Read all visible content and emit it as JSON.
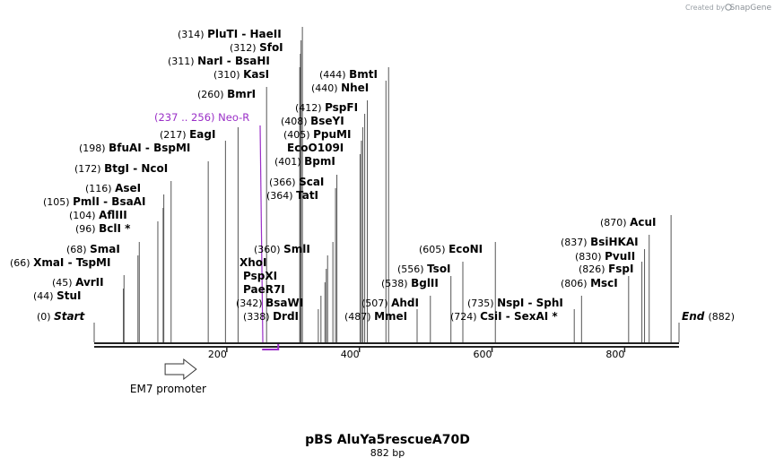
{
  "credit": {
    "prefix": "Created by",
    "brand": "SnapGene"
  },
  "title": "pBS AluYa5rescueA70D",
  "subtitle": "882 bp",
  "total_bp": 882,
  "colors": {
    "feature": "#9a2fc7",
    "line": "#555555",
    "backbone": "#222222"
  },
  "ticks": [
    {
      "bp": 200,
      "label": "200"
    },
    {
      "bp": 400,
      "label": "400"
    },
    {
      "bp": 600,
      "label": "600"
    },
    {
      "bp": 800,
      "label": "800"
    }
  ],
  "ends": {
    "start": {
      "pos": "(0)",
      "name": "Start"
    },
    "end": {
      "pos": "(882)",
      "name": "End"
    }
  },
  "feature": {
    "pos": "(237 .. 256)",
    "name": "Neo-R",
    "start": 237,
    "end": 256
  },
  "promoter": {
    "name": "EM7 promoter",
    "start": 107,
    "end": 154
  },
  "sites": [
    {
      "pos": "(44)",
      "name": "StuI",
      "bp": 44
    },
    {
      "pos": "(45)",
      "name": "AvrII",
      "bp": 45
    },
    {
      "pos": "(66)",
      "name": "XmaI - TspMI",
      "bp": 66
    },
    {
      "pos": "(68)",
      "name": "SmaI",
      "bp": 68
    },
    {
      "pos": "(96)",
      "name": "BclI *",
      "bp": 96
    },
    {
      "pos": "(104)",
      "name": "AflIII",
      "bp": 104
    },
    {
      "pos": "(105)",
      "name": "PmlI - BsaAI",
      "bp": 105
    },
    {
      "pos": "(116)",
      "name": "AseI",
      "bp": 116
    },
    {
      "pos": "(172)",
      "name": "BtgI - NcoI",
      "bp": 172
    },
    {
      "pos": "(198)",
      "name": "BfuAI - BspMI",
      "bp": 198
    },
    {
      "pos": "(217)",
      "name": "EagI",
      "bp": 217
    },
    {
      "pos": "(260)",
      "name": "BmrI",
      "bp": 260
    },
    {
      "pos": "(310)",
      "name": "KasI",
      "bp": 310
    },
    {
      "pos": "(311)",
      "name": "NarI - BsaHI",
      "bp": 311
    },
    {
      "pos": "(312)",
      "name": "SfoI",
      "bp": 312
    },
    {
      "pos": "(314)",
      "name": "PluTI - HaeII",
      "bp": 314
    },
    {
      "pos": "(338)",
      "name": "DrdI",
      "bp": 338
    },
    {
      "pos": "(342)",
      "name": "BsaWI",
      "bp": 342
    },
    {
      "pos": "",
      "name": "PaeR7I",
      "bp": 348
    },
    {
      "pos": "",
      "name": "PspXI",
      "bp": 350
    },
    {
      "pos": "",
      "name": "XhoI",
      "bp": 352
    },
    {
      "pos": "(360)",
      "name": "SmlI",
      "bp": 360
    },
    {
      "pos": "(364)",
      "name": "TatI",
      "bp": 364
    },
    {
      "pos": "(366)",
      "name": "ScaI",
      "bp": 366
    },
    {
      "pos": "(401)",
      "name": "BpmI",
      "bp": 401
    },
    {
      "pos": "",
      "name": "EcoO109I",
      "bp": 403
    },
    {
      "pos": "(405)",
      "name": "PpuMI",
      "bp": 405
    },
    {
      "pos": "(408)",
      "name": "BseYI",
      "bp": 408
    },
    {
      "pos": "(412)",
      "name": "PspFI",
      "bp": 412
    },
    {
      "pos": "(440)",
      "name": "NheI",
      "bp": 440
    },
    {
      "pos": "(444)",
      "name": "BmtI",
      "bp": 444
    },
    {
      "pos": "(487)",
      "name": "MmeI",
      "bp": 487
    },
    {
      "pos": "(507)",
      "name": "AhdI",
      "bp": 507
    },
    {
      "pos": "(538)",
      "name": "BglII",
      "bp": 538
    },
    {
      "pos": "(556)",
      "name": "TsoI",
      "bp": 556
    },
    {
      "pos": "(605)",
      "name": "EcoNI",
      "bp": 605
    },
    {
      "pos": "(724)",
      "name": "CsiI - SexAI *",
      "bp": 724
    },
    {
      "pos": "(735)",
      "name": "NspI - SphI",
      "bp": 735
    },
    {
      "pos": "(806)",
      "name": "MscI",
      "bp": 806
    },
    {
      "pos": "(826)",
      "name": "FspI",
      "bp": 826
    },
    {
      "pos": "(830)",
      "name": "PvuII",
      "bp": 830
    },
    {
      "pos": "(837)",
      "name": "BsiHKAI",
      "bp": 837
    },
    {
      "pos": "(870)",
      "name": "AcuI",
      "bp": 870
    }
  ]
}
